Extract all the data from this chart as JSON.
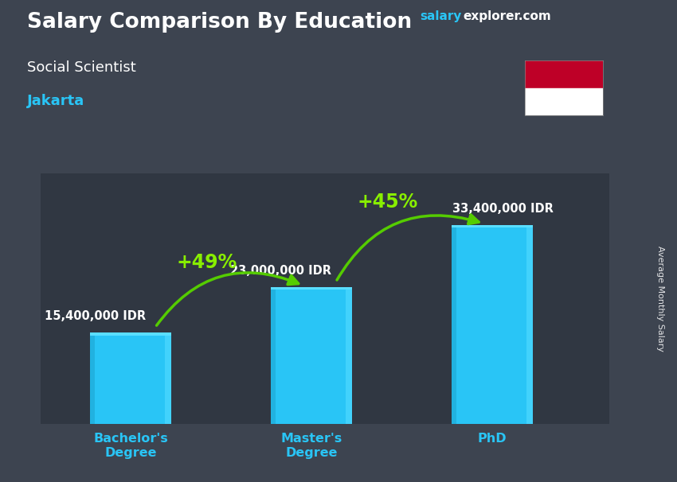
{
  "title": "Salary Comparison By Education",
  "subtitle": "Social Scientist",
  "city": "Jakarta",
  "watermark_salary": "salary",
  "watermark_rest": "explorer.com",
  "ylabel": "Average Monthly Salary",
  "categories": [
    "Bachelor's\nDegree",
    "Master's\nDegree",
    "PhD"
  ],
  "values": [
    15400000,
    23000000,
    33400000
  ],
  "labels": [
    "15,400,000 IDR",
    "23,000,000 IDR",
    "33,400,000 IDR"
  ],
  "pct_labels": [
    "+49%",
    "+45%"
  ],
  "bar_color": "#29c5f6",
  "bar_right_edge": "#4dd8ff",
  "bar_left_shade": "#1aa0cc",
  "bar_top_shade": "#5adeff",
  "background_color": "#3d4450",
  "title_color": "#ffffff",
  "subtitle_color": "#ffffff",
  "city_color": "#29c5f6",
  "xtick_color": "#29c5f6",
  "salary_label_color": "#ffffff",
  "pct_color": "#88ee00",
  "arrow_color": "#55cc00",
  "watermark_salary_color": "#29c5f6",
  "watermark_rest_color": "#ffffff",
  "flag_red": "#be0027",
  "flag_white": "#ffffff",
  "ylim_max": 42000000,
  "bar_width": 0.45
}
